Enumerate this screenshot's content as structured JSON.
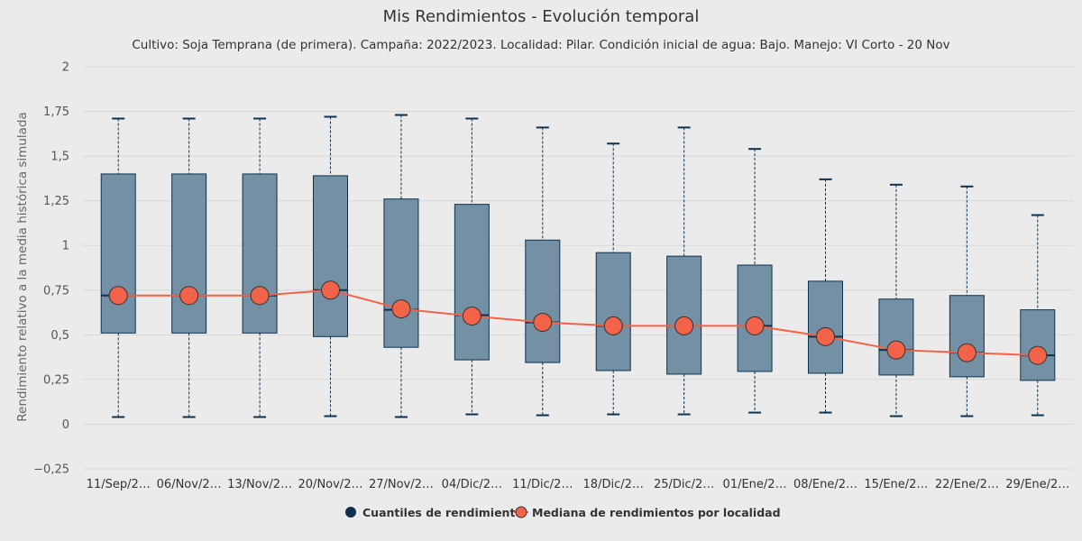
{
  "chart_data": {
    "type": "boxplot",
    "title": "Mis Rendimientos - Evolución temporal",
    "subtitle": "Cultivo: Soja Temprana (de primera). Campaña: 2022/2023. Localidad: Pilar. Condición inicial de agua: Bajo. Manejo: VI Corto - 20 Nov",
    "ylabel": "Rendimiento relativo a la media histórica simulada",
    "xlabel": "",
    "ylim": [
      -0.25,
      2
    ],
    "yticks": [
      -0.25,
      0,
      0.25,
      0.5,
      0.75,
      1,
      1.25,
      1.5,
      1.75,
      2
    ],
    "ytick_labels": [
      "−0,25",
      "0",
      "0,25",
      "0,5",
      "0,75",
      "1",
      "1,25",
      "1,5",
      "1,75",
      "2"
    ],
    "grid": true,
    "legend_position": "bottom",
    "categories": [
      "11/Sep/2…",
      "06/Nov/2…",
      "13/Nov/2…",
      "20/Nov/2…",
      "27/Nov/2…",
      "04/Dic/2…",
      "11/Dic/2…",
      "18/Dic/2…",
      "25/Dic/2…",
      "01/Ene/2…",
      "08/Ene/2…",
      "15/Ene/2…",
      "22/Ene/2…",
      "29/Ene/2…"
    ],
    "series": [
      {
        "name": "Cuantiles de rendimiento",
        "type": "boxplot",
        "color": "#0d3250",
        "fill": "#7390a4",
        "boxes": [
          {
            "low": 0.04,
            "q1": 0.51,
            "median": 0.72,
            "q3": 1.4,
            "high": 1.71
          },
          {
            "low": 0.04,
            "q1": 0.51,
            "median": 0.72,
            "q3": 1.4,
            "high": 1.71
          },
          {
            "low": 0.04,
            "q1": 0.51,
            "median": 0.72,
            "q3": 1.4,
            "high": 1.71
          },
          {
            "low": 0.045,
            "q1": 0.49,
            "median": 0.75,
            "q3": 1.39,
            "high": 1.72
          },
          {
            "low": 0.04,
            "q1": 0.43,
            "median": 0.64,
            "q3": 1.26,
            "high": 1.73
          },
          {
            "low": 0.055,
            "q1": 0.36,
            "median": 0.61,
            "q3": 1.23,
            "high": 1.71
          },
          {
            "low": 0.05,
            "q1": 0.345,
            "median": 0.57,
            "q3": 1.03,
            "high": 1.66
          },
          {
            "low": 0.055,
            "q1": 0.3,
            "median": 0.55,
            "q3": 0.96,
            "high": 1.57
          },
          {
            "low": 0.055,
            "q1": 0.28,
            "median": 0.55,
            "q3": 0.94,
            "high": 1.66
          },
          {
            "low": 0.065,
            "q1": 0.295,
            "median": 0.55,
            "q3": 0.89,
            "high": 1.54
          },
          {
            "low": 0.065,
            "q1": 0.285,
            "median": 0.49,
            "q3": 0.8,
            "high": 1.37
          },
          {
            "low": 0.045,
            "q1": 0.275,
            "median": 0.415,
            "q3": 0.7,
            "high": 1.34
          },
          {
            "low": 0.045,
            "q1": 0.265,
            "median": 0.4,
            "q3": 0.72,
            "high": 1.33
          },
          {
            "low": 0.05,
            "q1": 0.245,
            "median": 0.385,
            "q3": 0.64,
            "high": 1.17
          }
        ]
      },
      {
        "name": "Mediana de rendimientos por localidad",
        "type": "line",
        "color": "#f26349",
        "values": [
          0.72,
          0.72,
          0.72,
          0.75,
          0.645,
          0.605,
          0.57,
          0.55,
          0.55,
          0.55,
          0.49,
          0.415,
          0.4,
          0.385
        ]
      }
    ]
  }
}
